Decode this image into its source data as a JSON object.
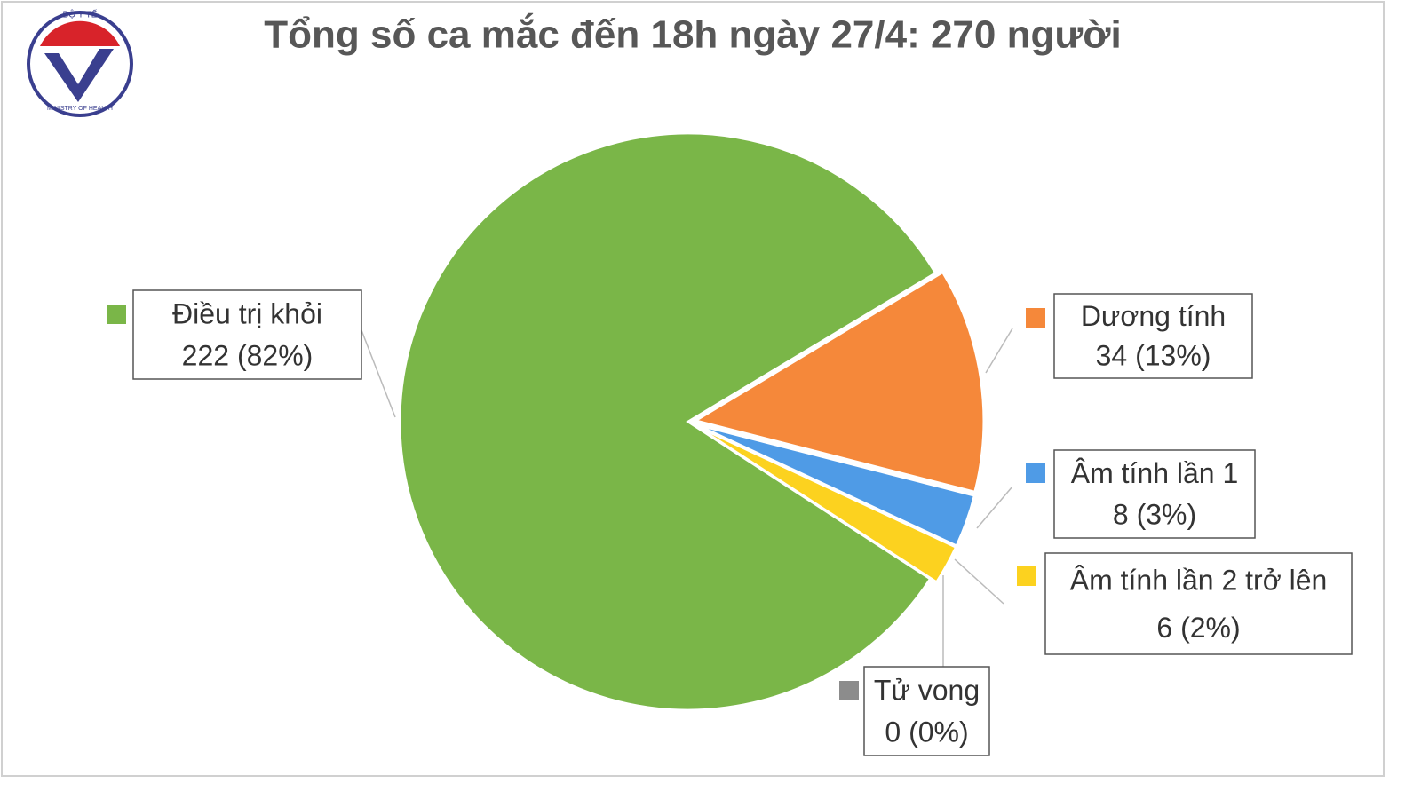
{
  "logo": {
    "top": "BỘ Y TẾ",
    "bottom": "MINISTRY OF HEALTH"
  },
  "chart_data": {
    "type": "pie",
    "title": "Tổng số ca mắc đến 18h ngày 27/4: 270 người",
    "categories": [
      "Điều trị khỏi",
      "Dương tính",
      "Âm tính lần 1",
      "Âm tính lần 2 trở lên",
      "Tử vong"
    ],
    "values": [
      222,
      34,
      8,
      6,
      0
    ],
    "value_labels": [
      "222 (82%)",
      "34 (13%)",
      "8 (3%)",
      "6 (2%)",
      "0 (0%)"
    ],
    "colors": [
      "#7ab648",
      "#f5883a",
      "#4f9be6",
      "#fcd21f",
      "#8c8c8c"
    ]
  }
}
